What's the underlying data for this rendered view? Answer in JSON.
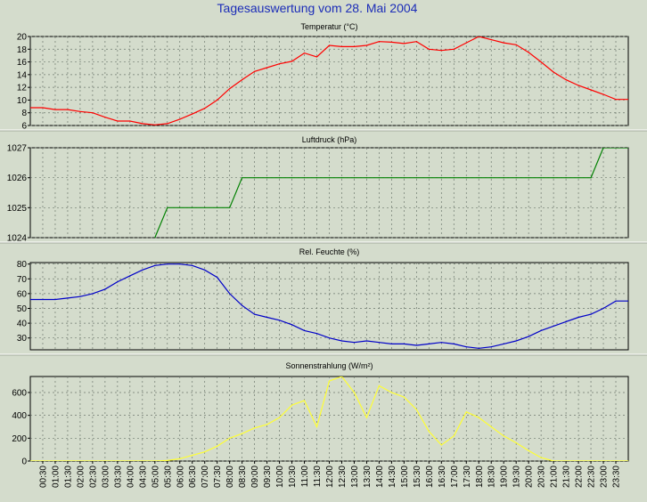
{
  "page": {
    "title": "Tagesauswertung vom 28. Mai 2004"
  },
  "time_labels": [
    "00:30",
    "01:00",
    "01:30",
    "02:00",
    "02:30",
    "03:00",
    "03:30",
    "04:00",
    "04:30",
    "05:00",
    "05:30",
    "06:00",
    "06:30",
    "07:00",
    "07:30",
    "08:00",
    "08:30",
    "09:00",
    "09:30",
    "10:00",
    "10:30",
    "11:00",
    "11:30",
    "12:00",
    "12:30",
    "13:00",
    "13:30",
    "14:00",
    "14:30",
    "15:00",
    "15:30",
    "16:00",
    "16:30",
    "17:00",
    "17:30",
    "18:00",
    "18:30",
    "19:00",
    "19:30",
    "20:00",
    "20:30",
    "21:00",
    "21:30",
    "22:00",
    "22:30",
    "23:00",
    "23:30"
  ],
  "colors": {
    "background": "#d4dccc",
    "panel_bg": "#d4dccc",
    "title": "#1c2db8",
    "grid": "#6e786e",
    "axis": "#000000",
    "temperature": "#ff0000",
    "pressure": "#008000",
    "humidity": "#0000c8",
    "radiation": "#ffff33"
  },
  "chart_data": [
    {
      "type": "line",
      "title": "Temperatur (°C)",
      "x": [
        "00:30",
        "01:00",
        "01:30",
        "02:00",
        "02:30",
        "03:00",
        "03:30",
        "04:00",
        "04:30",
        "05:00",
        "05:30",
        "06:00",
        "06:30",
        "07:00",
        "07:30",
        "08:00",
        "08:30",
        "09:00",
        "09:30",
        "10:00",
        "10:30",
        "11:00",
        "11:30",
        "12:00",
        "12:30",
        "13:00",
        "13:30",
        "14:00",
        "14:30",
        "15:00",
        "15:30",
        "16:00",
        "16:30",
        "17:00",
        "17:30",
        "18:00",
        "18:30",
        "19:00",
        "19:30",
        "20:00",
        "20:30",
        "21:00",
        "21:30",
        "22:00",
        "22:30",
        "23:00",
        "23:30"
      ],
      "y": [
        8.8,
        8.5,
        8.5,
        8.2,
        8.0,
        7.3,
        6.7,
        6.7,
        6.3,
        6.1,
        6.3,
        7.0,
        7.8,
        8.7,
        10.0,
        11.8,
        13.2,
        14.5,
        15.1,
        15.7,
        16.1,
        17.4,
        16.8,
        18.6,
        18.4,
        18.4,
        18.6,
        19.2,
        19.1,
        18.9,
        19.2,
        18.0,
        17.8,
        18.0,
        19.0,
        20.0,
        19.5,
        19.0,
        18.7,
        17.5,
        16.0,
        14.4,
        13.2,
        12.3,
        11.6,
        10.9,
        10.1
      ],
      "ylim": [
        6,
        20
      ],
      "yticks": [
        6,
        8,
        10,
        12,
        14,
        16,
        18,
        20
      ],
      "series_color": "#ff0000",
      "grid": true
    },
    {
      "type": "line",
      "title": "Luftdruck (hPa)",
      "x": [
        "00:30",
        "01:00",
        "01:30",
        "02:00",
        "02:30",
        "03:00",
        "03:30",
        "04:00",
        "04:30",
        "05:00",
        "05:30",
        "06:00",
        "06:30",
        "07:00",
        "07:30",
        "08:00",
        "08:30",
        "09:00",
        "09:30",
        "10:00",
        "10:30",
        "11:00",
        "11:30",
        "12:00",
        "12:30",
        "13:00",
        "13:30",
        "14:00",
        "14:30",
        "15:00",
        "15:30",
        "16:00",
        "16:30",
        "17:00",
        "17:30",
        "18:00",
        "18:30",
        "19:00",
        "19:30",
        "20:00",
        "20:30",
        "21:00",
        "21:30",
        "22:00",
        "22:30",
        "23:00",
        "23:30"
      ],
      "y": [
        1023.6,
        1023.6,
        1023.6,
        1023.6,
        1023.6,
        1023.6,
        1023.6,
        1023.6,
        1023.6,
        1024.0,
        1025.0,
        1025.0,
        1025.0,
        1025.0,
        1025.0,
        1025.0,
        1026.0,
        1026.0,
        1026.0,
        1026.0,
        1026.0,
        1026.0,
        1026.0,
        1026.0,
        1026.0,
        1026.0,
        1026.0,
        1026.0,
        1026.0,
        1026.0,
        1026.0,
        1026.0,
        1026.0,
        1026.0,
        1026.0,
        1026.0,
        1026.0,
        1026.0,
        1026.0,
        1026.0,
        1026.0,
        1026.0,
        1026.0,
        1026.0,
        1026.0,
        1027.0,
        1027.0
      ],
      "ylim": [
        1024,
        1027
      ],
      "yticks": [
        1024,
        1025,
        1026,
        1027
      ],
      "series_color": "#008000",
      "grid": true
    },
    {
      "type": "line",
      "title": "Rel. Feuchte (%)",
      "x": [
        "00:30",
        "01:00",
        "01:30",
        "02:00",
        "02:30",
        "03:00",
        "03:30",
        "04:00",
        "04:30",
        "05:00",
        "05:30",
        "06:00",
        "06:30",
        "07:00",
        "07:30",
        "08:00",
        "08:30",
        "09:00",
        "09:30",
        "10:00",
        "10:30",
        "11:00",
        "11:30",
        "12:00",
        "12:30",
        "13:00",
        "13:30",
        "14:00",
        "14:30",
        "15:00",
        "15:30",
        "16:00",
        "16:30",
        "17:00",
        "17:30",
        "18:00",
        "18:30",
        "19:00",
        "19:30",
        "20:00",
        "20:30",
        "21:00",
        "21:30",
        "22:00",
        "22:30",
        "23:00",
        "23:30"
      ],
      "y": [
        56,
        56,
        57,
        58,
        60,
        63,
        68,
        72,
        76,
        79,
        80,
        80,
        79,
        76,
        71,
        60,
        52,
        46,
        44,
        42,
        39,
        35,
        33,
        30,
        28,
        27,
        28,
        27,
        26,
        26,
        25,
        26,
        27,
        26,
        24,
        23,
        24,
        26,
        28,
        31,
        35,
        38,
        41,
        44,
        46,
        50,
        55
      ],
      "ylim": [
        22,
        81
      ],
      "yticks": [
        30,
        40,
        50,
        60,
        70,
        80
      ],
      "series_color": "#0000c8",
      "grid": true
    },
    {
      "type": "line",
      "title": "Sonnenstrahlung (W/m²)",
      "x": [
        "00:30",
        "01:00",
        "01:30",
        "02:00",
        "02:30",
        "03:00",
        "03:30",
        "04:00",
        "04:30",
        "05:00",
        "05:30",
        "06:00",
        "06:30",
        "07:00",
        "07:30",
        "08:00",
        "08:30",
        "09:00",
        "09:30",
        "10:00",
        "10:30",
        "11:00",
        "11:30",
        "12:00",
        "12:30",
        "13:00",
        "13:30",
        "14:00",
        "14:30",
        "15:00",
        "15:30",
        "16:00",
        "16:30",
        "17:00",
        "17:30",
        "18:00",
        "18:30",
        "19:00",
        "19:30",
        "20:00",
        "20:30",
        "21:00",
        "21:30",
        "22:00",
        "22:30",
        "23:00",
        "23:30"
      ],
      "y": [
        0,
        0,
        0,
        0,
        0,
        0,
        0,
        0,
        0,
        0,
        5,
        20,
        50,
        80,
        130,
        200,
        240,
        290,
        320,
        380,
        490,
        530,
        300,
        700,
        740,
        600,
        380,
        660,
        600,
        560,
        450,
        260,
        140,
        220,
        430,
        380,
        300,
        220,
        160,
        90,
        30,
        0,
        0,
        0,
        0,
        0,
        0
      ],
      "ylim": [
        0,
        740
      ],
      "yticks": [
        0,
        200,
        400,
        600
      ],
      "series_color": "#ffff33",
      "grid": true
    }
  ]
}
